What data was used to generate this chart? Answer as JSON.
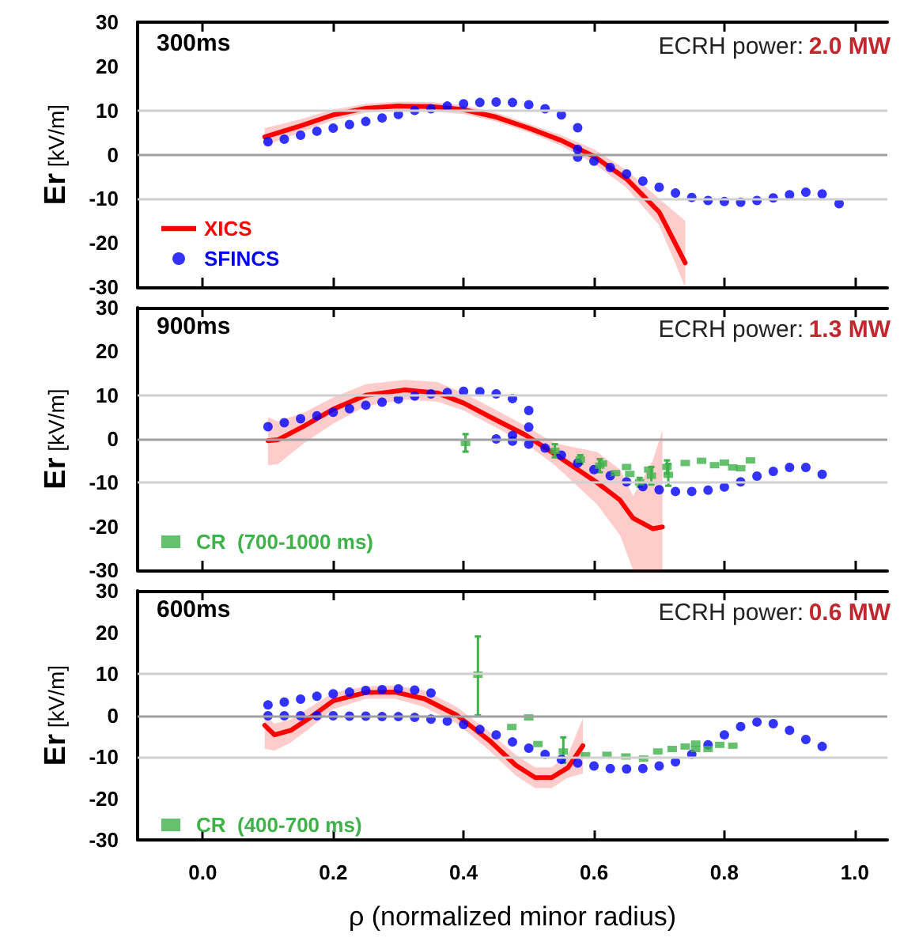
{
  "chart_data": [
    {
      "type": "line",
      "title": "300ms",
      "ylabel": "Er [kV/m]",
      "annotations": [
        "ECRH power:",
        "2.0 MW"
      ],
      "xlim": [
        -0.1,
        1.05
      ],
      "xticks": [
        {
          "value": 0,
          "label": null
        },
        {
          "value": 0.2,
          "label": null
        },
        {
          "value": 0.4,
          "label": null
        },
        {
          "value": 0.6,
          "label": null
        },
        {
          "value": 0.8,
          "label": null
        },
        {
          "value": 1,
          "label": null
        }
      ],
      "ylim": [
        -30,
        30
      ],
      "yticks": [
        -30,
        -20,
        -10,
        0,
        10,
        20,
        30
      ],
      "tick_labels": "y",
      "legend": "bottom left",
      "ref_lines": [
        {
          "axis": "y",
          "value": 10,
          "color": "#d0d0d0"
        },
        {
          "axis": "y",
          "value": 0,
          "color": "#a0a0a0"
        },
        {
          "axis": "y",
          "value": -10,
          "color": "#d0d0d0"
        }
      ],
      "series": [
        {
          "name": "XICS",
          "type": "line",
          "color": "#ff0000",
          "marker": "none",
          "line_style": "solid",
          "x": [
            0.095,
            0.15,
            0.2,
            0.25,
            0.3,
            0.35,
            0.4,
            0.45,
            0.5,
            0.55,
            0.6,
            0.65,
            0.7,
            0.74
          ],
          "values": [
            4,
            6.5,
            9,
            10.5,
            11,
            10.9,
            10.2,
            8.5,
            6,
            3.2,
            -0.4,
            -5.5,
            -13,
            -24.5
          ],
          "lower": [
            2,
            5,
            7.8,
            9.5,
            10,
            9.9,
            9.2,
            7.5,
            5,
            2,
            -2,
            -7.5,
            -16,
            -30
          ],
          "upper": [
            6,
            8,
            10.2,
            11.5,
            12,
            11.9,
            11.2,
            9.5,
            7,
            4.4,
            1.2,
            -3.5,
            -10,
            -15
          ]
        },
        {
          "name": "SFINCS",
          "type": "scatter",
          "color": "#0000ff",
          "marker": "circle",
          "x": [
            0.1,
            0.125,
            0.15,
            0.175,
            0.2,
            0.225,
            0.25,
            0.275,
            0.3,
            0.325,
            0.35,
            0.375,
            0.4,
            0.425,
            0.45,
            0.475,
            0.5,
            0.525,
            0.55,
            0.575,
            0.575,
            0.575,
            0.6,
            0.625,
            0.65,
            0.675,
            0.7,
            0.725,
            0.75,
            0.775,
            0.8,
            0.825,
            0.85,
            0.875,
            0.9,
            0.925,
            0.95,
            0.976
          ],
          "values": [
            2.9,
            3.5,
            4.4,
            5.3,
            6,
            6.8,
            7.5,
            8.3,
            9.1,
            10,
            10.4,
            11,
            11.5,
            11.8,
            11.9,
            11.8,
            11.3,
            10.4,
            9,
            6.1,
            1.2,
            -0.6,
            -1.5,
            -2.9,
            -4.4,
            -6,
            -7.4,
            -8.7,
            -9.7,
            -10.4,
            -10.6,
            -10.8,
            -10.4,
            -9.8,
            -9.1,
            -8.5,
            -8.9,
            -11.1
          ]
        }
      ]
    },
    {
      "type": "line",
      "title": "900ms",
      "ylabel": "Er [kV/m]",
      "annotations": [
        "ECRH power:",
        "1.3 MW"
      ],
      "xlim": [
        -0.1,
        1.05
      ],
      "xticks": [
        {
          "value": 0,
          "label": null
        },
        {
          "value": 0.2,
          "label": null
        },
        {
          "value": 0.4,
          "label": null
        },
        {
          "value": 0.6,
          "label": null
        },
        {
          "value": 0.8,
          "label": null
        },
        {
          "value": 1,
          "label": null
        }
      ],
      "ylim": [
        -30,
        30
      ],
      "yticks": [
        -30,
        -20,
        -10,
        0,
        10,
        20,
        30
      ],
      "tick_labels": "y",
      "legend": "bottom left",
      "ref_lines": [
        {
          "axis": "y",
          "value": 10,
          "color": "#d0d0d0"
        },
        {
          "axis": "y",
          "value": 0,
          "color": "#a0a0a0"
        },
        {
          "axis": "y",
          "value": -10,
          "color": "#d0d0d0"
        }
      ],
      "series": [
        {
          "type": "line",
          "color": "#ff0000",
          "marker": "none",
          "line_style": "solid",
          "x": [
            0.1,
            0.115,
            0.155,
            0.2,
            0.25,
            0.31,
            0.36,
            0.4,
            0.445,
            0.495,
            0.54,
            0.605,
            0.64,
            0.66,
            0.69,
            0.705
          ],
          "values": [
            -0.4,
            -0.2,
            2.9,
            6.8,
            10,
            11.2,
            10.5,
            8.2,
            4.7,
            0.9,
            -3.5,
            -10,
            -14,
            -18.1,
            -20.5,
            -20.1
          ],
          "lower": [
            -6,
            -5.8,
            -1,
            3.5,
            7.5,
            9,
            8.5,
            6.5,
            3,
            -1,
            -6,
            -15,
            -22,
            -30,
            -30,
            -30
          ],
          "upper": [
            5,
            4,
            6,
            9.5,
            12.5,
            13.5,
            13,
            10.5,
            7,
            3,
            -1,
            -3,
            -7,
            -13,
            -5,
            2
          ]
        },
        {
          "type": "scatter",
          "color": "#0000ff",
          "marker": "circle",
          "x": [
            0.1,
            0.125,
            0.15,
            0.175,
            0.2,
            0.225,
            0.25,
            0.275,
            0.3,
            0.325,
            0.35,
            0.375,
            0.4,
            0.425,
            0.45,
            0.475,
            0.5,
            0.5,
            0.45,
            0.475,
            0.475,
            0.5,
            0.525,
            0.55,
            0.575,
            0.6,
            0.625,
            0.65,
            0.675,
            0.7,
            0.725,
            0.75,
            0.775,
            0.8,
            0.825,
            0.85,
            0.875,
            0.9,
            0.925,
            0.95
          ],
          "values": [
            2.8,
            3.7,
            4.6,
            5.3,
            6.1,
            6.9,
            7.7,
            8.4,
            9.1,
            9.8,
            10.3,
            10.6,
            10.9,
            10.8,
            10.3,
            9.2,
            6.5,
            2.7,
            0,
            0.8,
            -0.5,
            -1.2,
            -2.1,
            -3.7,
            -5.5,
            -7,
            -8.4,
            -9.8,
            -10.9,
            -11.6,
            -12,
            -12,
            -11.7,
            -11,
            -9.8,
            -8.5,
            -7.4,
            -6.5,
            -6.5,
            -8.1
          ]
        },
        {
          "name": "CR  (700-1000 ms)",
          "type": "scatter",
          "color": "#3fb24a",
          "marker": "square",
          "x": [
            0.403,
            0.54,
            0.579,
            0.609,
            0.613,
            0.633,
            0.65,
            0.655,
            0.67,
            0.684,
            0.688,
            0.712,
            0.714,
            0.74,
            0.765,
            0.785,
            0.8,
            0.813,
            0.825,
            0.84
          ],
          "values": [
            -0.9,
            -2.7,
            -4.7,
            -6.1,
            -5.6,
            -7.8,
            -6.4,
            -8,
            -9.9,
            -7,
            -8.4,
            -6.4,
            -8.2,
            -5.5,
            -5,
            -6,
            -5.4,
            -6.5,
            -6.7,
            -4.9
          ],
          "errors": [
            2,
            1.5,
            1,
            1.5,
            null,
            null,
            null,
            null,
            1,
            null,
            2,
            1.5,
            2.5,
            null,
            null,
            null,
            null,
            null,
            null,
            null
          ]
        }
      ]
    },
    {
      "type": "line",
      "title": "600ms",
      "xlabel": "ρ (normalized minor radius)",
      "ylabel": "Er [kV/m]",
      "annotations": [
        "ECRH power:",
        "0.6 MW"
      ],
      "xlim": [
        -0.1,
        1.05
      ],
      "xticks": [
        {
          "value": 0,
          "label": "0.0"
        },
        {
          "value": 0.2,
          "label": "0.2"
        },
        {
          "value": 0.4,
          "label": "0.4"
        },
        {
          "value": 0.6,
          "label": "0.6"
        },
        {
          "value": 0.8,
          "label": "0.8"
        },
        {
          "value": 1,
          "label": "1.0"
        }
      ],
      "ylim": [
        -30,
        30
      ],
      "yticks": [
        -30,
        -20,
        -10,
        0,
        10,
        20,
        30
      ],
      "legend": "bottom left",
      "ref_lines": [
        {
          "axis": "y",
          "value": 10,
          "color": "#d0d0d0"
        },
        {
          "axis": "y",
          "value": 0,
          "color": "#a0a0a0"
        },
        {
          "axis": "y",
          "value": -10,
          "color": "#d0d0d0"
        }
      ],
      "series": [
        {
          "type": "line",
          "color": "#ff0000",
          "marker": "none",
          "line_style": "solid",
          "x": [
            0.095,
            0.11,
            0.135,
            0.165,
            0.2,
            0.25,
            0.295,
            0.34,
            0.39,
            0.44,
            0.48,
            0.51,
            0.535,
            0.56,
            0.583
          ],
          "values": [
            -2.4,
            -4.7,
            -3.6,
            -0.5,
            3.5,
            5.5,
            5.6,
            4,
            0,
            -6.1,
            -12,
            -15,
            -15,
            -12.6,
            -7.3
          ],
          "lower": [
            -8,
            -8.5,
            -6.5,
            -3,
            1.5,
            4,
            4,
            2,
            -2,
            -8.5,
            -14.5,
            -17.5,
            -17.5,
            -15,
            -14
          ],
          "upper": [
            0,
            -2,
            -1,
            2,
            5.5,
            7,
            7.2,
            6,
            2,
            -4,
            -9.5,
            -12.5,
            -12.5,
            -9.5,
            -0.6
          ]
        },
        {
          "type": "scatter",
          "color": "#0000ff",
          "marker": "circle",
          "x": [
            0.1,
            0.125,
            0.15,
            0.175,
            0.2,
            0.225,
            0.25,
            0.275,
            0.3,
            0.325,
            0.35,
            0.1,
            0.125,
            0.15,
            0.175,
            0.2,
            0.225,
            0.25,
            0.275,
            0.3,
            0.325,
            0.35,
            0.375,
            0.4,
            0.425,
            0.45,
            0.475,
            0.5,
            0.525,
            0.55,
            0.575,
            0.6,
            0.625,
            0.65,
            0.675,
            0.7,
            0.725,
            0.75,
            0.775,
            0.8,
            0.825,
            0.85,
            0.875,
            0.9,
            0.925,
            0.95
          ],
          "values": [
            2.5,
            3.2,
            3.9,
            4.6,
            5.2,
            5.6,
            6,
            6.2,
            6.4,
            6.1,
            5.4,
            -0.1,
            -0.1,
            -0.1,
            -0.1,
            -0.1,
            -0.2,
            -0.2,
            -0.3,
            -0.3,
            -0.5,
            -0.9,
            -1.4,
            -2.2,
            -3.4,
            -4.7,
            -6.4,
            -7.9,
            -9.4,
            -10.6,
            -11.5,
            -12.2,
            -12.8,
            -12.9,
            -12.8,
            -12.2,
            -11.2,
            -9.4,
            -7.1,
            -4.7,
            -2.7,
            -1.6,
            -2,
            -3.6,
            -5.8,
            -7.5
          ]
        },
        {
          "name": "CR  (400-700 ms)",
          "type": "scatter",
          "color": "#3fb24a",
          "marker": "square",
          "x": [
            0.422,
            0.474,
            0.5,
            0.514,
            0.553,
            0.587,
            0.62,
            0.649,
            0.676,
            0.698,
            0.72,
            0.74,
            0.756,
            0.756,
            0.775,
            0.793,
            0.813
          ],
          "values": [
            9.8,
            -2.8,
            -0.5,
            -6.9,
            -8.7,
            -9.6,
            -9.5,
            -9.9,
            -10.4,
            -8.7,
            -8.1,
            -7.5,
            -6.8,
            -8.1,
            -8.1,
            -7.1,
            -7.3
          ],
          "errors": [
            [
              0,
              19
            ],
            null,
            null,
            null,
            [
              -11.4,
              -5.3
            ],
            null,
            null,
            null,
            null,
            null,
            null,
            null,
            null,
            null,
            null,
            null,
            null
          ]
        }
      ]
    }
  ]
}
